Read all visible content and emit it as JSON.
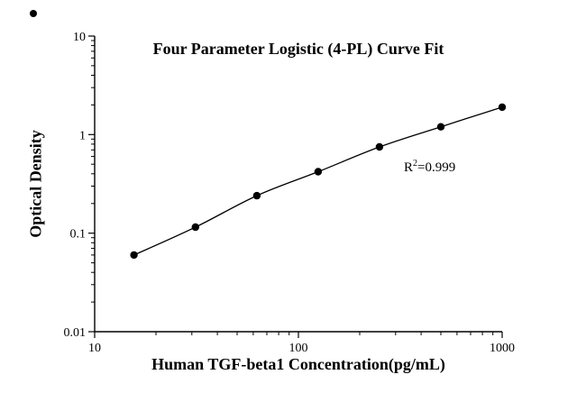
{
  "chart_data": {
    "type": "scatter",
    "title": "Four Parameter Logistic (4-PL) Curve Fit",
    "xlabel": "Human TGF-beta1 Concentration(pg/mL)",
    "ylabel": "Optical Density",
    "x_scale": "log",
    "y_scale": "log",
    "xlim": [
      10,
      1000
    ],
    "ylim": [
      0.01,
      10
    ],
    "grid": false,
    "legend": false,
    "x_ticks": {
      "values": [
        10,
        100,
        1000
      ],
      "labels": [
        "10",
        "100",
        "1000"
      ]
    },
    "y_ticks": {
      "values": [
        10,
        1,
        0.1,
        0.01
      ],
      "labels": [
        "10",
        "1",
        "0.1",
        "0.01"
      ]
    },
    "x_minor": [
      20,
      30,
      40,
      50,
      60,
      70,
      80,
      90,
      200,
      300,
      400,
      500,
      600,
      700,
      800,
      900
    ],
    "y_minor": [
      0.02,
      0.03,
      0.04,
      0.05,
      0.06,
      0.07,
      0.08,
      0.09,
      0.2,
      0.3,
      0.4,
      0.5,
      0.6,
      0.7,
      0.8,
      0.9,
      2,
      3,
      4,
      5,
      6,
      7,
      8,
      9
    ],
    "points": {
      "x": [
        15.6,
        31.25,
        62.5,
        125,
        250,
        500,
        1000
      ],
      "y": [
        0.06,
        0.115,
        0.24,
        0.42,
        0.75,
        1.2,
        1.9
      ]
    },
    "annotation": {
      "base": "R",
      "sup": "2",
      "rest": "=0.999"
    },
    "marker_color": "#000000",
    "line_color": "#000000",
    "axis_color": "#000000"
  }
}
